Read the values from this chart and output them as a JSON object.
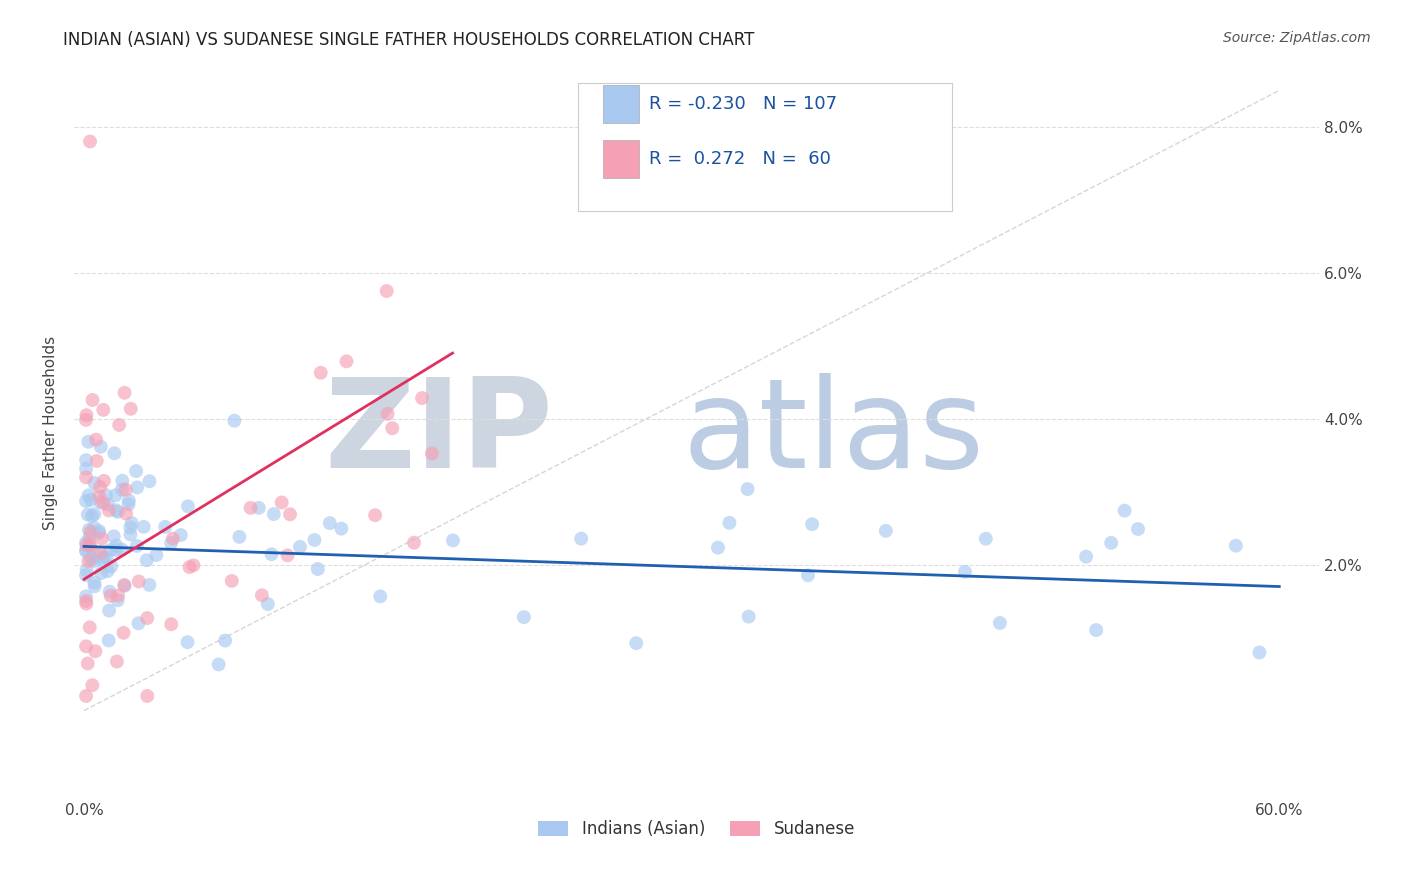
{
  "title": "INDIAN (ASIAN) VS SUDANESE SINGLE FATHER HOUSEHOLDS CORRELATION CHART",
  "source": "Source: ZipAtlas.com",
  "ylabel": "Single Father Households",
  "xlim": [
    -0.005,
    0.62
  ],
  "ylim": [
    -0.012,
    0.088
  ],
  "xtick_positions": [
    0.0,
    0.1,
    0.2,
    0.3,
    0.4,
    0.5,
    0.6
  ],
  "xticklabels": [
    "0.0%",
    "",
    "",
    "",
    "",
    "",
    "60.0%"
  ],
  "ytick_positions": [
    0.0,
    0.02,
    0.04,
    0.06,
    0.08
  ],
  "yticklabels_right": [
    "",
    "2.0%",
    "4.0%",
    "6.0%",
    "8.0%"
  ],
  "legend_R1": "-0.230",
  "legend_N1": "107",
  "legend_R2": " 0.272",
  "legend_N2": " 60",
  "blue_scatter_color": "#A8C8F0",
  "pink_scatter_color": "#F5A0B5",
  "blue_line_color": "#2060B0",
  "pink_line_color": "#E03060",
  "diag_color": "#CCCCCC",
  "grid_color": "#DDDDDD",
  "background": "#FFFFFF",
  "title_fontsize": 12,
  "source_fontsize": 10,
  "tick_fontsize": 11,
  "ylabel_fontsize": 11,
  "legend_fontsize": 13,
  "watermark_zip_color": "#D0D8E8",
  "watermark_atlas_color": "#B8CCE4",
  "scatter_size": 100,
  "scatter_alpha": 0.65,
  "indian_seed": 17,
  "sudanese_seed": 99
}
